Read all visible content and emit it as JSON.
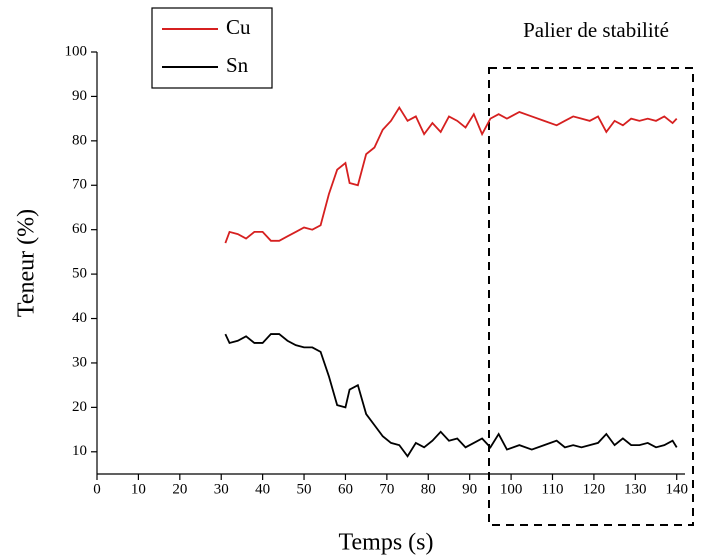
{
  "chart_data": {
    "type": "line",
    "annotation": "Palier de stabilité",
    "x_label": "Temps (s)",
    "y_label": "Teneur (%)",
    "x": [
      31,
      32,
      34,
      36,
      38,
      40,
      42,
      44,
      46,
      48,
      50,
      52,
      54,
      56,
      58,
      60,
      61,
      63,
      65,
      67,
      69,
      71,
      73,
      75,
      77,
      79,
      81,
      83,
      85,
      87,
      89,
      91,
      93,
      95,
      97,
      99,
      102,
      105,
      108,
      111,
      113,
      115,
      117,
      119,
      121,
      123,
      125,
      127,
      129,
      131,
      133,
      135,
      137,
      139,
      140
    ],
    "series": [
      {
        "name": "Cu",
        "color": "#d62020",
        "values": [
          57,
          59.5,
          59,
          58,
          59.5,
          59.5,
          57.5,
          57.5,
          58.5,
          59.5,
          60.5,
          60,
          61,
          68,
          73.5,
          75,
          70.5,
          70,
          77,
          78.5,
          82.5,
          84.5,
          87.5,
          84.5,
          85.5,
          81.5,
          84,
          82,
          85.5,
          84.5,
          83,
          86,
          81.5,
          85,
          86,
          85,
          86.5,
          85.5,
          84.5,
          83.5,
          84.5,
          85.5,
          85,
          84.5,
          85.5,
          82,
          84.5,
          83.5,
          85,
          84.5,
          85,
          84.5,
          85.5,
          84,
          85
        ]
      },
      {
        "name": "Sn",
        "color": "#000000",
        "values": [
          36.5,
          34.5,
          35,
          36,
          34.5,
          34.5,
          36.5,
          36.5,
          35,
          34,
          33.5,
          33.5,
          32.5,
          27,
          20.5,
          20,
          24,
          25,
          18.5,
          16,
          13.5,
          12,
          11.5,
          9,
          12,
          11,
          12.5,
          14.5,
          12.5,
          13,
          11,
          12,
          13,
          11,
          14,
          10.5,
          11.5,
          10.5,
          11.5,
          12.5,
          11,
          11.5,
          11,
          11.5,
          12,
          14,
          11.5,
          13,
          11.5,
          11.5,
          12,
          11,
          11.5,
          12.5,
          11
        ]
      }
    ],
    "xlim": [
      0,
      142
    ],
    "ylim": [
      5,
      100
    ],
    "xticks": [
      0,
      10,
      20,
      30,
      40,
      50,
      60,
      70,
      80,
      90,
      100,
      110,
      120,
      130,
      140
    ],
    "yticks": [
      10,
      20,
      30,
      40,
      50,
      60,
      70,
      80,
      90,
      100
    ]
  }
}
